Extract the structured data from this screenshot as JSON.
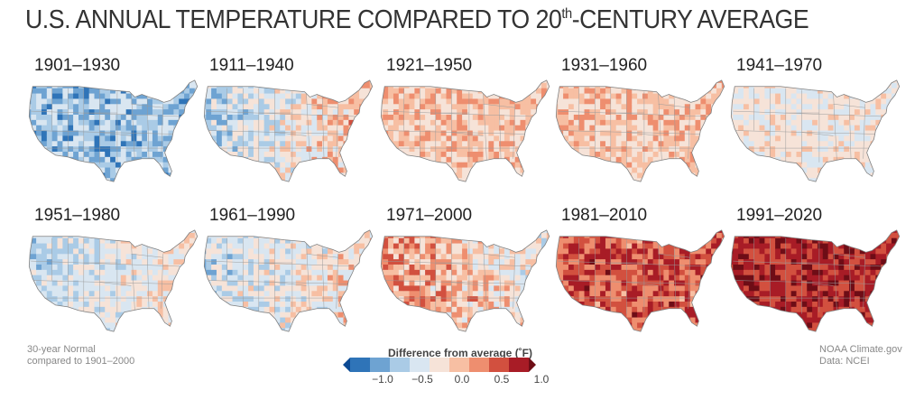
{
  "title": {
    "main": "U.S. ANNUAL TEMPERATURE COMPARED TO 20",
    "sup": "th",
    "rest": "-CENTURY AVERAGE"
  },
  "panels": [
    {
      "label": "1901–1930",
      "mean": -0.55,
      "var": 0.4
    },
    {
      "label": "1911–1940",
      "mean": -0.05,
      "var": 0.4
    },
    {
      "label": "1921–1950",
      "mean": 0.2,
      "var": 0.3
    },
    {
      "label": "1931–1960",
      "mean": 0.2,
      "var": 0.3
    },
    {
      "label": "1941–1970",
      "mean": -0.05,
      "var": 0.25
    },
    {
      "label": "1951–1980",
      "mean": -0.15,
      "var": 0.3
    },
    {
      "label": "1961–1990",
      "mean": -0.1,
      "var": 0.4
    },
    {
      "label": "1971–2000",
      "mean": 0.2,
      "var": 0.45
    },
    {
      "label": "1981–2010",
      "mean": 0.75,
      "var": 0.4
    },
    {
      "label": "1991–2020",
      "mean": 0.95,
      "var": 0.3
    }
  ],
  "footnote_left": {
    "line1": "30-year Normal",
    "line2": "compared to 1901–2000"
  },
  "footnote_right": {
    "line1": "NOAA Climate.gov",
    "line2": "Data: NCEI"
  },
  "legend": {
    "title": "Difference from average (˚F)",
    "ticks": [
      "−1.0",
      "−0.5",
      "0.0",
      "0.5",
      "1.0"
    ],
    "colors": [
      "#0b4a94",
      "#2f74b8",
      "#6ea3d2",
      "#aacbe6",
      "#d9e6f1",
      "#f6e3d8",
      "#f7bfa3",
      "#ee8e6f",
      "#d2503f",
      "#a81c26",
      "#6e0d16"
    ]
  }
}
